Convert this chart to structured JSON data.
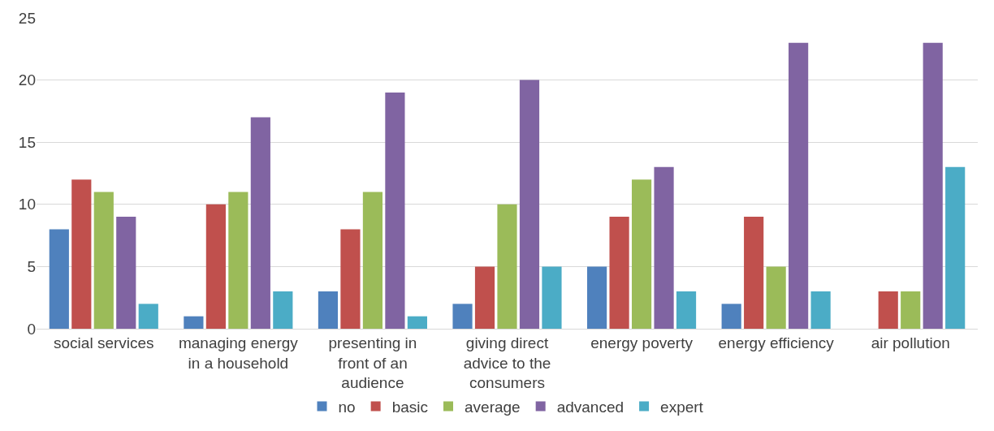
{
  "chart_data": {
    "type": "bar",
    "categories": [
      "social services",
      "managing energy in a household",
      "presenting in front of an audience",
      "giving direct advice to the consumers",
      "energy poverty",
      "energy efficiency",
      "air pollution"
    ],
    "series": [
      {
        "name": "no",
        "color": "#4f81bd",
        "values": [
          8,
          1,
          3,
          2,
          5,
          2,
          0
        ]
      },
      {
        "name": "basic",
        "color": "#c0504d",
        "values": [
          12,
          10,
          8,
          5,
          9,
          9,
          3
        ]
      },
      {
        "name": "average",
        "color": "#9bbb59",
        "values": [
          11,
          11,
          11,
          10,
          12,
          5,
          3
        ]
      },
      {
        "name": "advanced",
        "color": "#8064a2",
        "values": [
          9,
          17,
          19,
          20,
          13,
          23,
          23
        ]
      },
      {
        "name": "expert",
        "color": "#4bacc6",
        "values": [
          2,
          3,
          1,
          5,
          3,
          3,
          13
        ]
      }
    ],
    "ylim": [
      0,
      25
    ],
    "yticks": [
      0,
      5,
      10,
      15,
      20,
      25
    ],
    "grid": "y",
    "legend": "bottom"
  }
}
